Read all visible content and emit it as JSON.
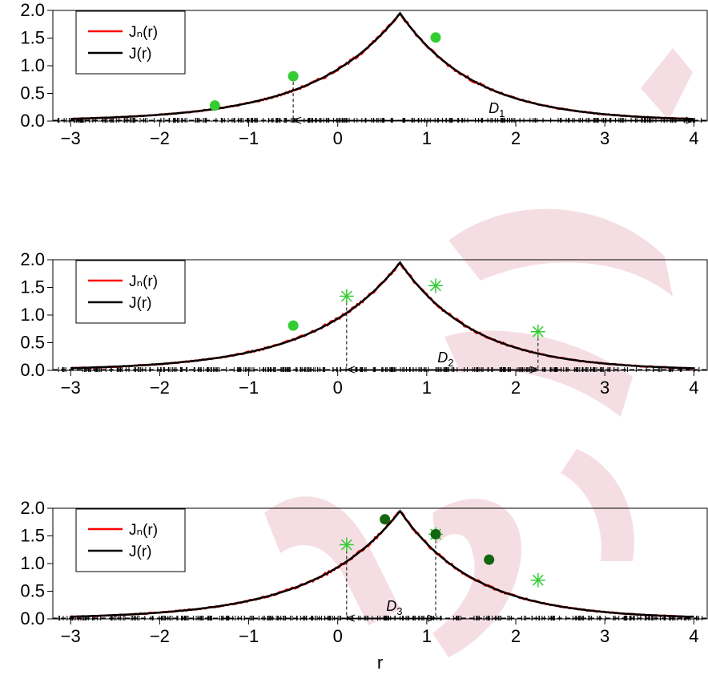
{
  "watermark": {
    "color": "#b0002a",
    "opacity": 0.13
  },
  "legend": {
    "items": [
      {
        "label": "Jₙ(r)",
        "color": "#ff0000"
      },
      {
        "label": "J(r)",
        "color": "#000000"
      }
    ]
  },
  "colors": {
    "empirical": "#ff0000",
    "true": "#000000",
    "light_green": "#33cc33",
    "dark_green": "#116611"
  },
  "chart_data": [
    {
      "type": "line",
      "panel": 1,
      "xlim": [
        -3.2,
        4.15
      ],
      "ylim": [
        0,
        2.0
      ],
      "xticks": [
        -3,
        -2,
        -1,
        0,
        1,
        2,
        3,
        4
      ],
      "yticks": [
        0.0,
        0.5,
        1.0,
        1.5,
        2.0
      ],
      "xtick_labels": [
        "−3",
        "−2",
        "−1",
        "0",
        "1",
        "2",
        "3",
        "4"
      ],
      "ytick_labels": [
        "0.0",
        "0.5",
        "1.0",
        "1.5",
        "2.0"
      ],
      "xlabel": "",
      "series": [
        {
          "name": "Jₙ(r)",
          "color": "#ff0000",
          "kind": "empirical"
        },
        {
          "name": "J(r)",
          "color": "#000000",
          "kind": "true",
          "peak_x": 0.7,
          "peak_y": 1.95
        }
      ],
      "points": [
        {
          "x": -1.38,
          "y": 0.28,
          "marker": "dot",
          "color": "#33cc33"
        },
        {
          "x": -0.5,
          "y": 0.81,
          "marker": "dot",
          "color": "#33cc33"
        },
        {
          "x": 1.1,
          "y": 1.51,
          "marker": "dot",
          "color": "#33cc33"
        }
      ],
      "dashed_lines": [
        {
          "x": -0.5,
          "y": 0.81
        }
      ],
      "interval": {
        "from": -0.5,
        "to": 4.0,
        "y": 0.1,
        "label": "D",
        "subscript": "1"
      }
    },
    {
      "type": "line",
      "panel": 2,
      "xlim": [
        -3.2,
        4.15
      ],
      "ylim": [
        0,
        2.0
      ],
      "xticks": [
        -3,
        -2,
        -1,
        0,
        1,
        2,
        3,
        4
      ],
      "yticks": [
        0.0,
        0.5,
        1.0,
        1.5,
        2.0
      ],
      "xtick_labels": [
        "−3",
        "−2",
        "−1",
        "0",
        "1",
        "2",
        "3",
        "4"
      ],
      "ytick_labels": [
        "0.0",
        "0.5",
        "1.0",
        "1.5",
        "2.0"
      ],
      "xlabel": "",
      "series": [
        {
          "name": "Jₙ(r)",
          "color": "#ff0000",
          "kind": "empirical"
        },
        {
          "name": "J(r)",
          "color": "#000000",
          "kind": "true",
          "peak_x": 0.7,
          "peak_y": 1.95
        }
      ],
      "points": [
        {
          "x": -0.5,
          "y": 0.81,
          "marker": "dot",
          "color": "#33cc33"
        },
        {
          "x": 0.1,
          "y": 1.34,
          "marker": "star",
          "color": "#33cc33"
        },
        {
          "x": 1.1,
          "y": 1.53,
          "marker": "star",
          "color": "#33cc33"
        },
        {
          "x": 2.25,
          "y": 0.7,
          "marker": "star",
          "color": "#33cc33"
        }
      ],
      "dashed_lines": [
        {
          "x": 0.1,
          "y": 1.34
        },
        {
          "x": 2.25,
          "y": 0.7
        }
      ],
      "interval": {
        "from": 0.1,
        "to": 2.25,
        "y": 0.1,
        "label": "D",
        "subscript": "2"
      }
    },
    {
      "type": "line",
      "panel": 3,
      "xlim": [
        -3.2,
        4.15
      ],
      "ylim": [
        0,
        2.0
      ],
      "xticks": [
        -3,
        -2,
        -1,
        0,
        1,
        2,
        3,
        4
      ],
      "yticks": [
        0.0,
        0.5,
        1.0,
        1.5,
        2.0
      ],
      "xtick_labels": [
        "−3",
        "−2",
        "−1",
        "0",
        "1",
        "2",
        "3",
        "4"
      ],
      "ytick_labels": [
        "0.0",
        "0.5",
        "1.0",
        "1.5",
        "2.0"
      ],
      "xlabel": "r",
      "series": [
        {
          "name": "Jₙ(r)",
          "color": "#ff0000",
          "kind": "empirical"
        },
        {
          "name": "J(r)",
          "color": "#000000",
          "kind": "true",
          "peak_x": 0.7,
          "peak_y": 1.95
        }
      ],
      "points": [
        {
          "x": 0.1,
          "y": 1.34,
          "marker": "star",
          "color": "#33cc33"
        },
        {
          "x": 0.53,
          "y": 1.8,
          "marker": "dot",
          "color": "#116611"
        },
        {
          "x": 1.1,
          "y": 1.53,
          "marker": "star",
          "color": "#33cc33"
        },
        {
          "x": 1.1,
          "y": 1.53,
          "marker": "dot",
          "color": "#116611"
        },
        {
          "x": 1.7,
          "y": 1.07,
          "marker": "dot",
          "color": "#116611"
        },
        {
          "x": 2.25,
          "y": 0.7,
          "marker": "star",
          "color": "#33cc33"
        }
      ],
      "dashed_lines": [
        {
          "x": 0.1,
          "y": 1.34
        },
        {
          "x": 1.1,
          "y": 1.53
        }
      ],
      "interval": {
        "from": 0.1,
        "to": 1.1,
        "y": 0.1,
        "label": "D",
        "subscript": "3"
      }
    }
  ]
}
